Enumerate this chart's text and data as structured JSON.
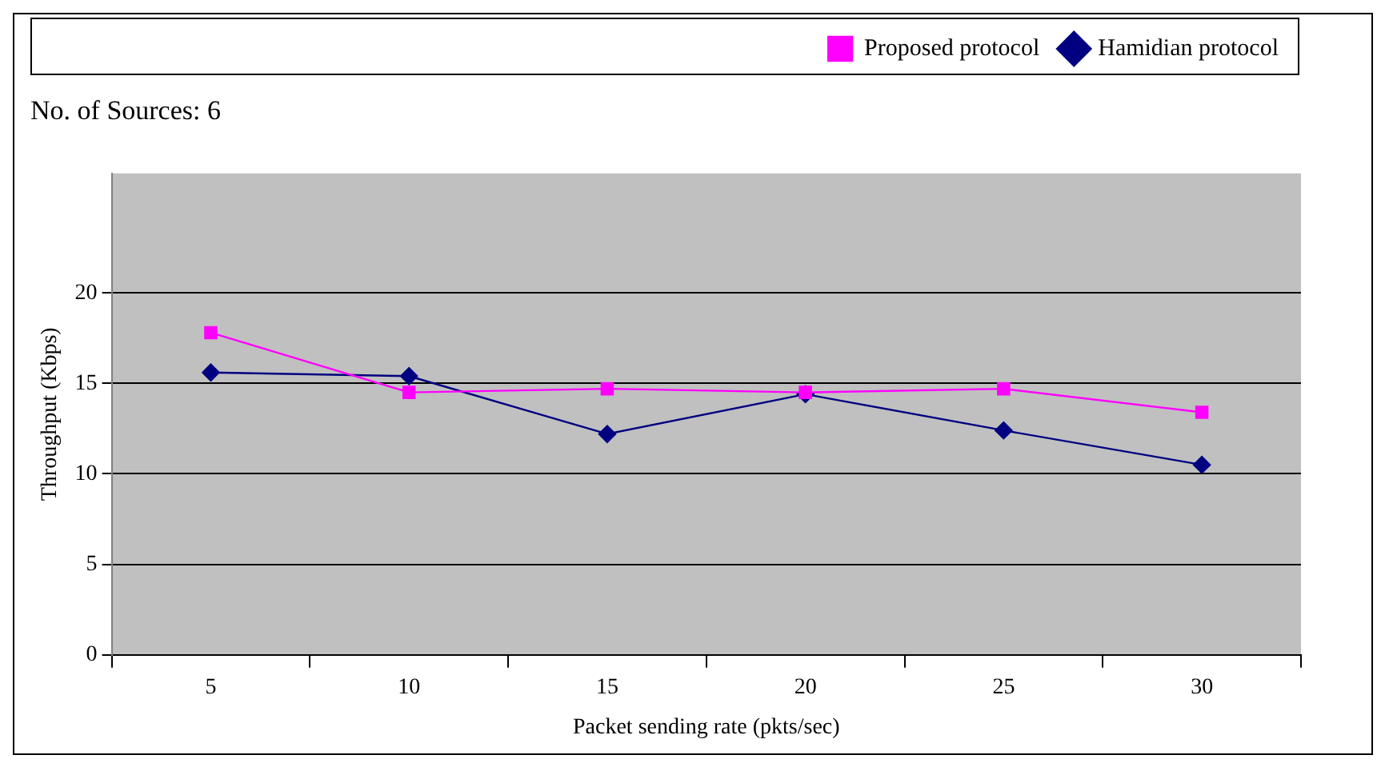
{
  "chart_data": {
    "type": "line",
    "title": "No. of Sources: 6",
    "xlabel": "Packet sending rate (pkts/sec)",
    "ylabel": "Throughput (Kbps)",
    "categories": [
      "5",
      "10",
      "15",
      "20",
      "25",
      "30"
    ],
    "series": [
      {
        "name": "Hamidian protocol",
        "color": "#000080",
        "marker": "diamond",
        "values": [
          15.6,
          15.4,
          12.2,
          14.4,
          12.4,
          10.5
        ]
      },
      {
        "name": "Proposed protocol",
        "color": "#ff00ff",
        "marker": "square",
        "values": [
          17.8,
          14.5,
          14.7,
          14.5,
          14.7,
          13.4
        ]
      }
    ],
    "ylim": [
      0,
      26.6
    ],
    "yticks": [
      0,
      5,
      10,
      15,
      20
    ],
    "grid": "y",
    "legend": "top right"
  }
}
